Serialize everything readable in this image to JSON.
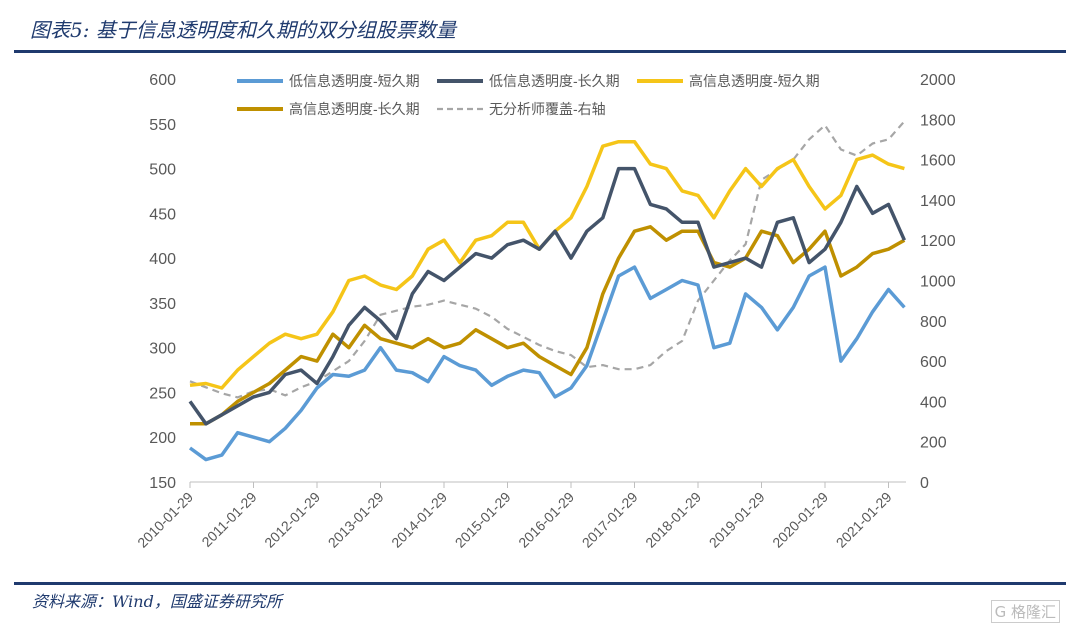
{
  "title": "图表5: 基于信息透明度和久期的双分组股票数量",
  "source": "资料来源：Wind，国盛证券研究所",
  "watermark": "格隆汇",
  "chart_data": {
    "type": "line",
    "title": "图表5: 基于信息透明度和久期的双分组股票数量",
    "x_ticks": [
      "2010-01-29",
      "2011-01-29",
      "2012-01-29",
      "2013-01-29",
      "2014-01-29",
      "2015-01-29",
      "2016-01-29",
      "2017-01-29",
      "2018-01-29",
      "2019-01-29",
      "2020-01-29",
      "2021-01-29"
    ],
    "y_left": {
      "range": [
        150,
        600
      ],
      "ticks": [
        150,
        200,
        250,
        300,
        350,
        400,
        450,
        500,
        550,
        600
      ]
    },
    "y_right": {
      "range": [
        0,
        2000
      ],
      "ticks": [
        0,
        200,
        400,
        600,
        800,
        1000,
        1200,
        1400,
        1600,
        1800,
        2000
      ]
    },
    "grid": false,
    "legend": "top",
    "x": [
      "2010-01",
      "2010-04",
      "2010-07",
      "2010-10",
      "2011-01",
      "2011-04",
      "2011-07",
      "2011-10",
      "2012-01",
      "2012-04",
      "2012-07",
      "2012-10",
      "2013-01",
      "2013-04",
      "2013-07",
      "2013-10",
      "2014-01",
      "2014-04",
      "2014-07",
      "2014-10",
      "2015-01",
      "2015-04",
      "2015-07",
      "2015-10",
      "2016-01",
      "2016-04",
      "2016-07",
      "2016-10",
      "2017-01",
      "2017-04",
      "2017-07",
      "2017-10",
      "2018-01",
      "2018-04",
      "2018-07",
      "2018-10",
      "2019-01",
      "2019-04",
      "2019-07",
      "2019-10",
      "2020-01",
      "2020-04",
      "2020-07",
      "2020-10",
      "2021-01",
      "2021-04"
    ],
    "series": [
      {
        "name": "低信息透明度-短久期",
        "color": "#5b9bd5",
        "axis": "left",
        "dash": false,
        "values": [
          188,
          175,
          180,
          205,
          200,
          195,
          210,
          230,
          255,
          270,
          268,
          275,
          300,
          275,
          272,
          262,
          290,
          280,
          275,
          258,
          268,
          275,
          272,
          245,
          255,
          280,
          330,
          380,
          390,
          355,
          365,
          375,
          370,
          300,
          305,
          360,
          345,
          320,
          345,
          380,
          390,
          285,
          310,
          340,
          365,
          345
        ]
      },
      {
        "name": "低信息透明度-长久期",
        "color": "#44546a",
        "axis": "left",
        "dash": false,
        "values": [
          240,
          215,
          225,
          235,
          245,
          250,
          270,
          275,
          260,
          290,
          325,
          345,
          330,
          310,
          360,
          385,
          375,
          390,
          405,
          400,
          415,
          420,
          410,
          430,
          400,
          430,
          445,
          500,
          500,
          460,
          455,
          440,
          440,
          390,
          395,
          400,
          390,
          440,
          445,
          395,
          410,
          440,
          480,
          450,
          460,
          420
        ]
      },
      {
        "name": "高信息透明度-短久期",
        "color": "#f5c518",
        "axis": "left",
        "dash": false,
        "values": [
          258,
          260,
          255,
          275,
          290,
          305,
          315,
          310,
          315,
          340,
          375,
          380,
          370,
          365,
          380,
          410,
          420,
          395,
          420,
          425,
          440,
          440,
          410,
          430,
          445,
          480,
          525,
          530,
          530,
          505,
          500,
          475,
          470,
          445,
          475,
          500,
          480,
          500,
          510,
          480,
          455,
          470,
          510,
          515,
          505,
          500
        ]
      },
      {
        "name": "高信息透明度-长久期",
        "color": "#bf9000",
        "axis": "left",
        "dash": false,
        "values": [
          215,
          215,
          225,
          240,
          250,
          260,
          275,
          290,
          285,
          315,
          300,
          325,
          310,
          305,
          300,
          310,
          300,
          305,
          320,
          310,
          300,
          305,
          290,
          280,
          270,
          300,
          360,
          400,
          430,
          435,
          420,
          430,
          430,
          395,
          390,
          400,
          430,
          425,
          395,
          410,
          430,
          380,
          390,
          405,
          410,
          420
        ]
      },
      {
        "name": "无分析师覆盖-右轴",
        "color": "#a6a6a6",
        "axis": "right",
        "dash": true,
        "values": [
          500,
          470,
          440,
          420,
          450,
          460,
          430,
          470,
          500,
          550,
          600,
          700,
          830,
          850,
          870,
          880,
          900,
          880,
          860,
          820,
          760,
          720,
          680,
          650,
          630,
          570,
          580,
          560,
          560,
          580,
          650,
          700,
          900,
          1000,
          1100,
          1180,
          1500,
          1550,
          1600,
          1700,
          1770,
          1650,
          1620,
          1680,
          1700,
          1790
        ]
      }
    ]
  }
}
